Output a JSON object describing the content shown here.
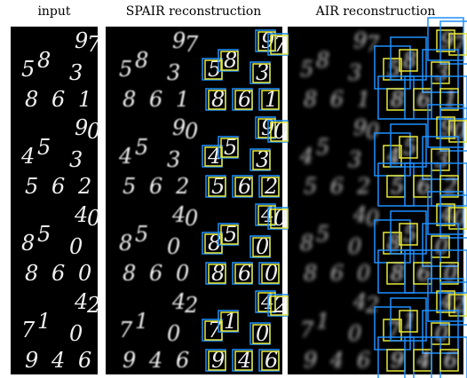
{
  "header": {
    "columns": [
      "input",
      "SPAIR reconstruction",
      "AIR reconstruction"
    ]
  },
  "rows": [
    {
      "digits": [
        "9",
        "7",
        "5",
        "8",
        "3",
        "8",
        "6",
        "1"
      ]
    },
    {
      "digits": [
        "9",
        "0",
        "4",
        "5",
        "3",
        "5",
        "6",
        "2"
      ]
    },
    {
      "digits": [
        "4",
        "0",
        "8",
        "5",
        "0",
        "8",
        "6",
        "0"
      ]
    },
    {
      "digits": [
        "4",
        "2",
        "7",
        "1",
        "0",
        "9",
        "4",
        "6"
      ]
    }
  ]
}
